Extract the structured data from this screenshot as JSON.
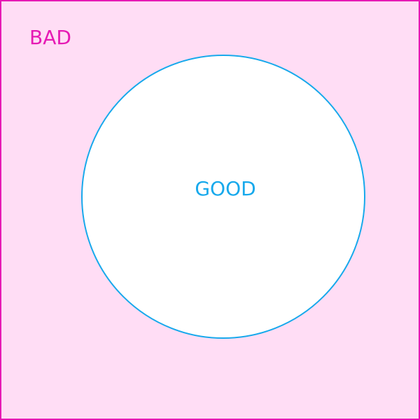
{
  "regions": {
    "outer": {
      "label": "BAD",
      "fill": "#ffddf5",
      "stroke": "#e61ab4"
    },
    "inner": {
      "label": "GOOD",
      "fill": "#ffffff",
      "stroke": "#17a9ec"
    }
  }
}
